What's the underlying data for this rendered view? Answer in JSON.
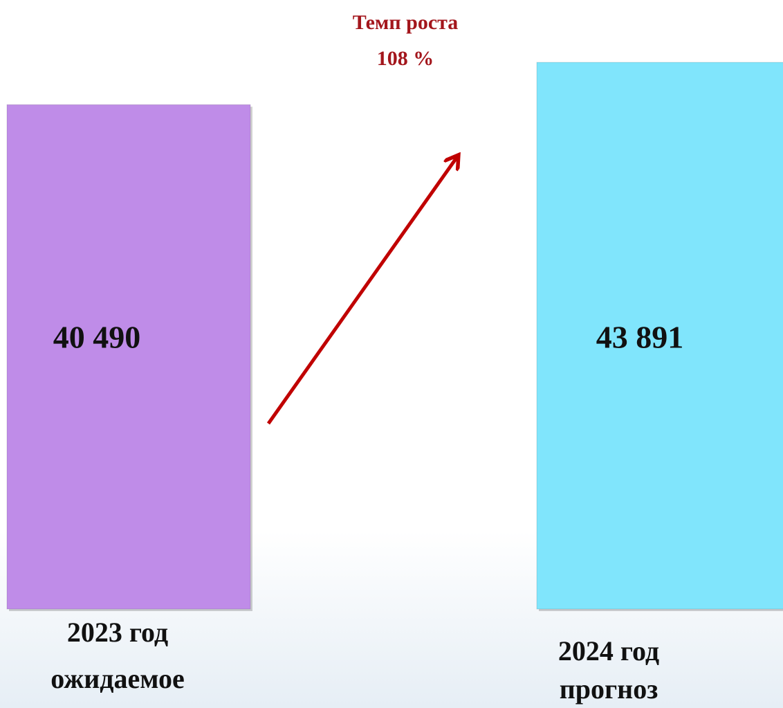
{
  "chart_data": {
    "type": "bar",
    "annotations": [
      "Темп роста",
      "108 %"
    ],
    "categories": [
      [
        "2023 год",
        "ожидаемое"
      ],
      [
        "2024 год",
        "прогноз"
      ]
    ],
    "values": [
      40490,
      43891
    ],
    "value_labels": [
      "40 490",
      "43 891"
    ],
    "colors": [
      "#bf8ce8",
      "#80e5fc"
    ],
    "annotation_color": "#a3161c"
  }
}
